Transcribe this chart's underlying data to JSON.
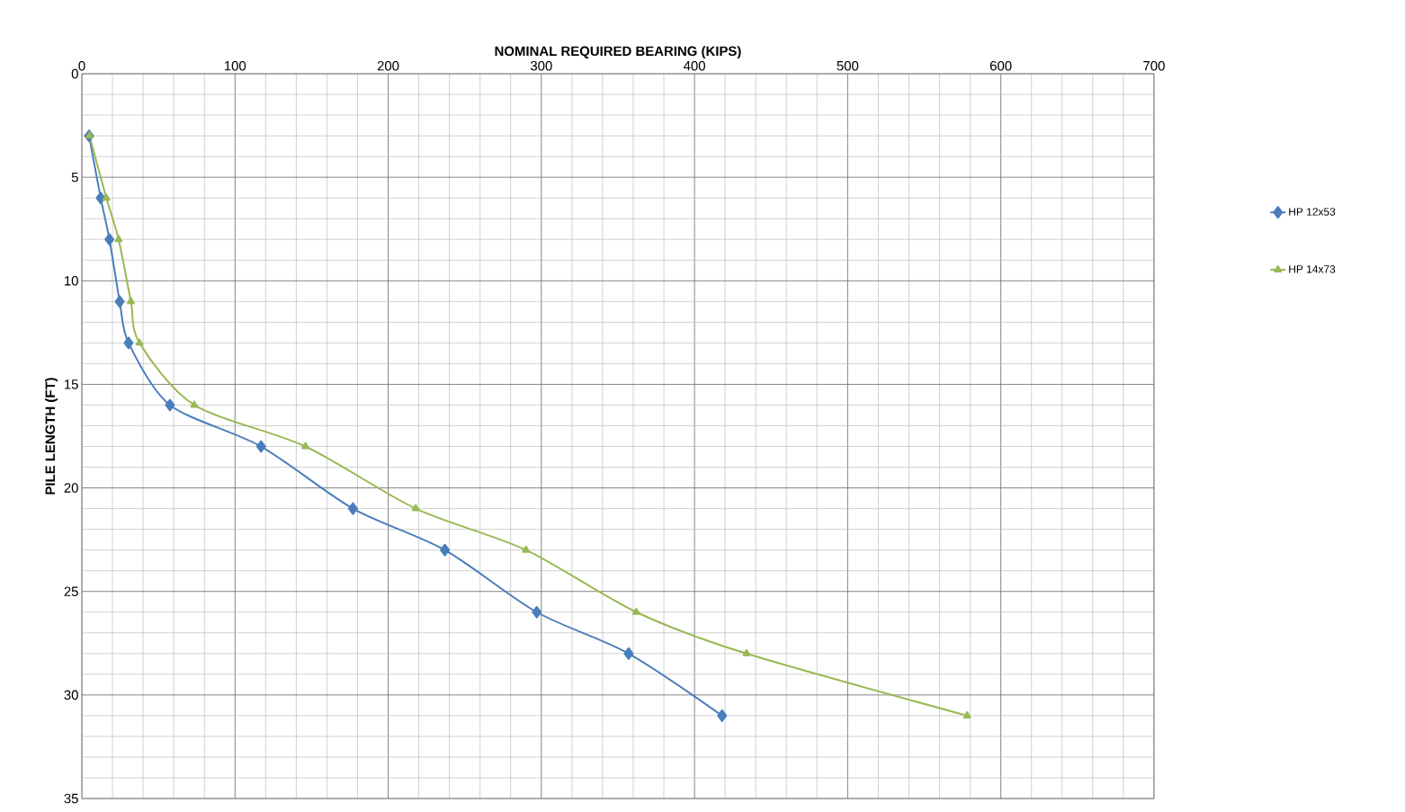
{
  "chart_data": {
    "type": "line",
    "xlabel": "NOMINAL REQUIRED BEARING (KIPS)",
    "ylabel": "PILE LENGTH (FT)",
    "xlim": [
      0,
      700
    ],
    "xticks": [
      0,
      100,
      200,
      300,
      400,
      500,
      600,
      700
    ],
    "ylim": [
      35,
      0
    ],
    "yticks": [
      0,
      5,
      10,
      15,
      20,
      25,
      30,
      35
    ],
    "grid": true,
    "legend": "right",
    "series": [
      {
        "name": "HP 12x53",
        "color": "#4a7ebb",
        "marker": "diamond",
        "x": [
          4.7,
          12.3,
          18,
          24.7,
          30.5,
          57.5,
          117,
          177,
          237,
          297,
          357,
          418
        ],
        "values": [
          3,
          6,
          8,
          11,
          13,
          16,
          18,
          21,
          23,
          26,
          28,
          31
        ]
      },
      {
        "name": "HP 14x73",
        "color": "#98b954",
        "marker": "triangle",
        "x": [
          5,
          16,
          24,
          32,
          37.6,
          73.4,
          146,
          218,
          290,
          362,
          434,
          578
        ],
        "values": [
          3,
          6,
          8,
          11,
          13,
          16,
          18,
          21,
          23,
          26,
          28,
          31
        ]
      }
    ]
  }
}
